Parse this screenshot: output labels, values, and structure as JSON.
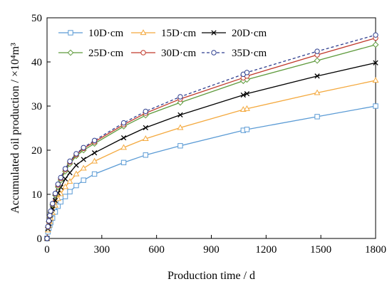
{
  "chart_data": {
    "type": "line",
    "xlabel": "Production time / d",
    "ylabel": "Accumulated oil production / ×10⁴m³",
    "xlim": [
      0,
      1800
    ],
    "ylim": [
      0,
      50
    ],
    "xticks": [
      0,
      300,
      600,
      900,
      1200,
      1500,
      1800
    ],
    "yticks": [
      0,
      10,
      20,
      30,
      40,
      50
    ],
    "legend_placement": "top-left",
    "grid": false,
    "x": [
      0,
      5,
      10,
      15,
      20,
      30,
      45,
      60,
      75,
      100,
      125,
      160,
      200,
      260,
      420,
      540,
      730,
      1075,
      1095,
      1480,
      1800
    ],
    "series": [
      {
        "name": "10D·cm",
        "color": "#5b9bd5",
        "marker": "square",
        "dash": false,
        "values": [
          0,
          1.5,
          2.3,
          3.0,
          3.6,
          4.6,
          6.0,
          7.3,
          8.3,
          9.5,
          10.6,
          12.0,
          13.2,
          14.6,
          17.2,
          18.9,
          21.0,
          24.5,
          24.7,
          27.6,
          30.0
        ]
      },
      {
        "name": "15D·cm",
        "color": "#f4a93e",
        "marker": "triangle",
        "dash": false,
        "values": [
          0,
          1.9,
          2.9,
          3.8,
          4.6,
          5.8,
          7.5,
          9.0,
          10.1,
          11.7,
          12.9,
          14.6,
          15.9,
          17.5,
          20.6,
          22.6,
          25.1,
          29.2,
          29.4,
          33.0,
          35.8
        ]
      },
      {
        "name": "20D·cm",
        "color": "#000000",
        "marker": "x",
        "dash": false,
        "values": [
          0,
          2.2,
          3.4,
          4.4,
          5.3,
          6.7,
          8.6,
          10.3,
          11.6,
          13.5,
          14.9,
          16.6,
          17.9,
          19.4,
          22.8,
          25.1,
          28.0,
          32.5,
          32.8,
          36.8,
          39.8
        ]
      },
      {
        "name": "25D·cm",
        "color": "#5e9a3c",
        "marker": "diamond",
        "dash": false,
        "values": [
          0,
          2.5,
          3.8,
          4.9,
          5.9,
          7.6,
          9.8,
          11.7,
          13.2,
          15.2,
          16.9,
          18.7,
          20.0,
          21.5,
          25.4,
          27.9,
          30.8,
          35.7,
          36.0,
          40.3,
          43.9
        ]
      },
      {
        "name": "30D·cm",
        "color": "#c0392b",
        "marker": "circle",
        "dash": false,
        "values": [
          0,
          2.6,
          3.9,
          5.1,
          6.1,
          7.8,
          10.1,
          12.1,
          13.6,
          15.6,
          17.3,
          19.0,
          20.4,
          21.9,
          25.8,
          28.4,
          31.6,
          36.4,
          36.8,
          41.6,
          45.4
        ]
      },
      {
        "name": "35D·cm",
        "color": "#2f3f8f",
        "marker": "circle",
        "dash": true,
        "values": [
          0,
          2.7,
          4.0,
          5.2,
          6.2,
          7.9,
          10.2,
          12.3,
          13.8,
          15.8,
          17.5,
          19.2,
          20.6,
          22.2,
          26.2,
          28.8,
          32.1,
          37.2,
          37.6,
          42.4,
          46.1
        ]
      }
    ]
  }
}
